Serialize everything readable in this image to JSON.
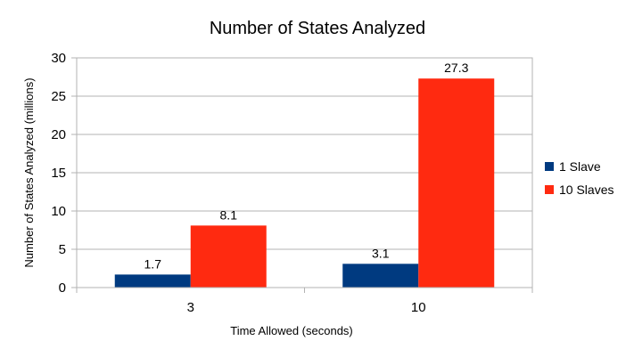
{
  "chart_data": {
    "type": "bar",
    "title": "Number of States Analyzed",
    "xlabel": "Time Allowed (seconds)",
    "ylabel": "Number of States Analyzed (millions)",
    "categories": [
      "3",
      "10"
    ],
    "series": [
      {
        "name": "1 Slave",
        "values": [
          1.7,
          3.1
        ],
        "color": "#003a80"
      },
      {
        "name": "10 Slaves",
        "values": [
          8.1,
          27.3
        ],
        "color": "#ff2a10"
      }
    ],
    "ylim": [
      0,
      30
    ],
    "yticks": [
      "0",
      "5",
      "10",
      "15",
      "20",
      "25",
      "30"
    ],
    "data_labels": [
      [
        "1.7",
        "3.1"
      ],
      [
        "8.1",
        "27.3"
      ]
    ],
    "grid": true,
    "legend_position": "right"
  }
}
